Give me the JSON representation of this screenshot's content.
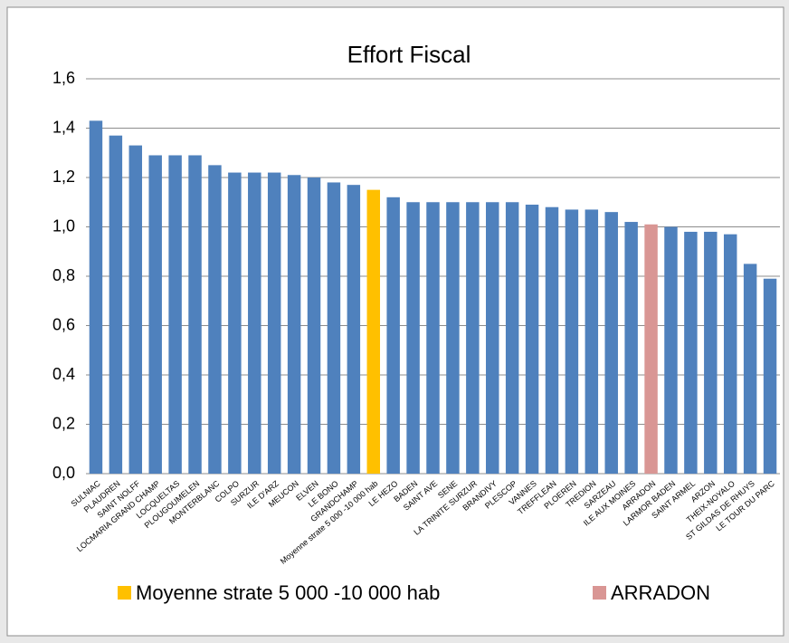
{
  "chart_data": {
    "type": "bar",
    "title": "Effort Fiscal",
    "categories": [
      "SULNIAC",
      "PLAUDREN",
      "SAINT NOLFF",
      "LOCMARIA GRAND CHAMP",
      "LOCQUELTAS",
      "PLOUGOUMELEN",
      "MONTERBLANC",
      "COLPO",
      "SURZUR",
      "ILE D'ARZ",
      "MEUCON",
      "ELVEN",
      "LE BONO",
      "GRANDCHAMP",
      "Moyenne strate 5 000 -10 000 hab",
      "LE HEZO",
      "BADEN",
      "SAINT AVE",
      "SENE",
      "LA TRINITE SURZUR",
      "BRANDIVY",
      "PLESCOP",
      "VANNES",
      "TREFFLEAN",
      "PLOEREN",
      "TREDION",
      "SARZEAU",
      "ILE AUX MOINES",
      "ARRADON",
      "LARMOR BADEN",
      "SAINT ARMEL",
      "ARZON",
      "THEIX-NOYALO",
      "ST GILDAS DE RHUYS",
      "LE TOUR DU PARC"
    ],
    "values": [
      1.43,
      1.37,
      1.33,
      1.29,
      1.29,
      1.29,
      1.25,
      1.22,
      1.22,
      1.22,
      1.21,
      1.2,
      1.18,
      1.17,
      1.15,
      1.12,
      1.1,
      1.1,
      1.1,
      1.1,
      1.1,
      1.1,
      1.09,
      1.08,
      1.07,
      1.07,
      1.06,
      1.02,
      1.01,
      1.0,
      0.98,
      0.98,
      0.97,
      0.85,
      0.79
    ],
    "color": "#4f81bd",
    "legend": [
      {
        "name": "Moyenne strate 5 000 -10 000 hab",
        "color": "#ffc000"
      },
      {
        "name": "ARRADON",
        "color": "#d99694"
      }
    ],
    "ylim": [
      0,
      1.6
    ],
    "yticks": [
      {
        "value": 0,
        "label": "0,0"
      },
      {
        "value": 0.2,
        "label": "0,2"
      },
      {
        "value": 0.4,
        "label": "0,4"
      },
      {
        "value": 0.6,
        "label": "0,6"
      },
      {
        "value": 0.8,
        "label": "0,8"
      },
      {
        "value": 1.0,
        "label": "1,0"
      },
      {
        "value": 1.2,
        "label": "1,2"
      },
      {
        "value": 1.4,
        "label": "1,4"
      },
      {
        "value": 1.6,
        "label": "1,6"
      }
    ],
    "grid": true
  }
}
